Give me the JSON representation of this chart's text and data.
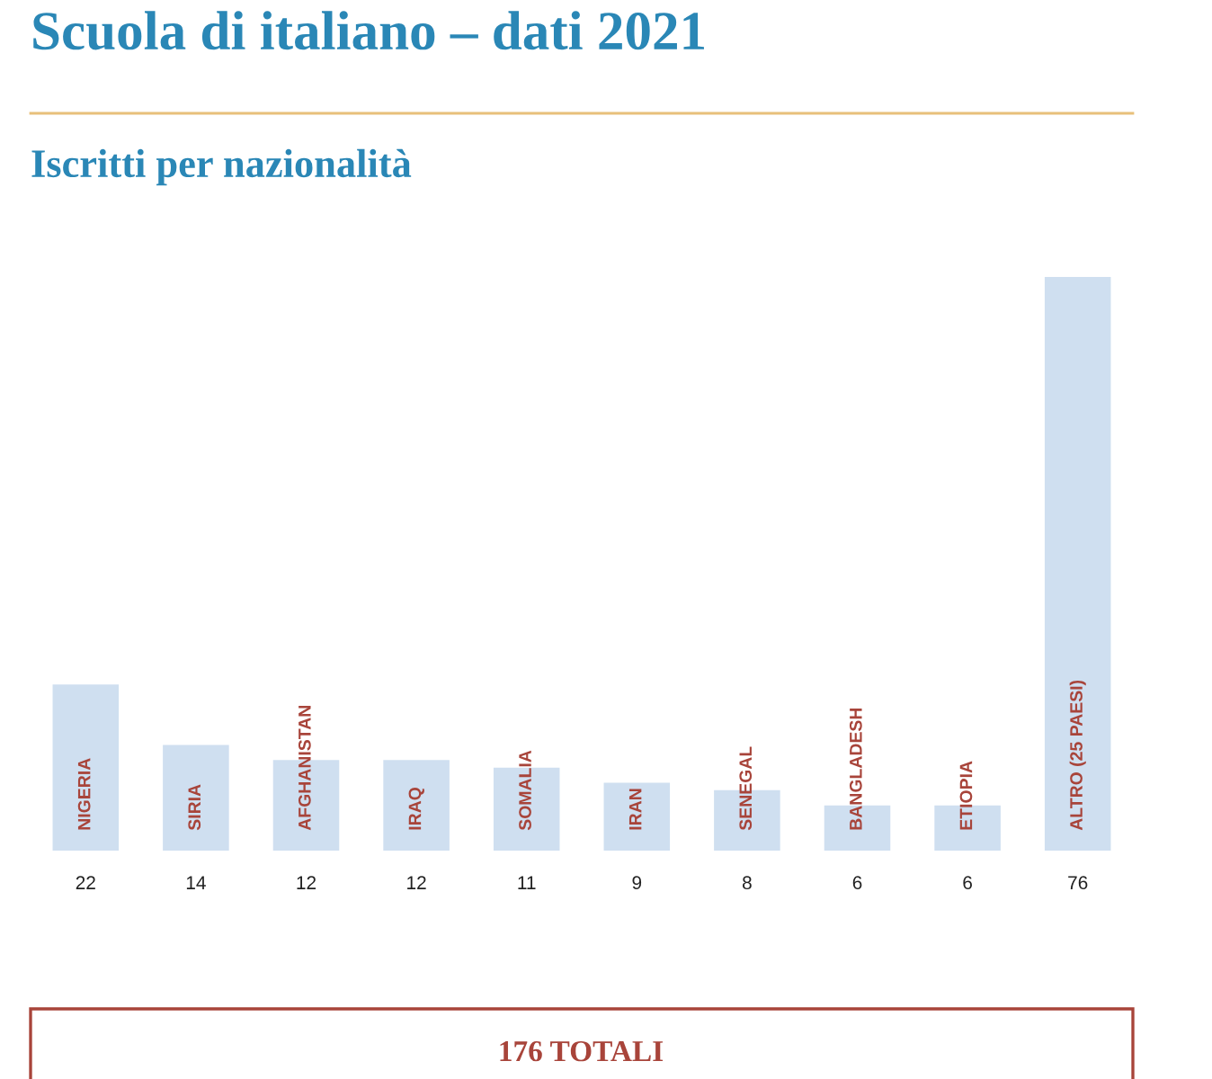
{
  "chart_data": {
    "type": "bar",
    "title": "Scuola di italiano – dati 2021",
    "subtitle": "Iscritti per nazionalità",
    "categories": [
      "NIGERIA",
      "SIRIA",
      "AFGHANISTAN",
      "IRAQ",
      "SOMALIA",
      "IRAN",
      "SENEGAL",
      "BANGLADESH",
      "ETIOPIA",
      "ALTRO (25 PAESI)"
    ],
    "values": [
      22,
      14,
      12,
      12,
      11,
      9,
      8,
      6,
      6,
      76
    ],
    "color": "#cfdff0",
    "data_labels": true,
    "annotations": [
      "176 TOTALI"
    ]
  }
}
